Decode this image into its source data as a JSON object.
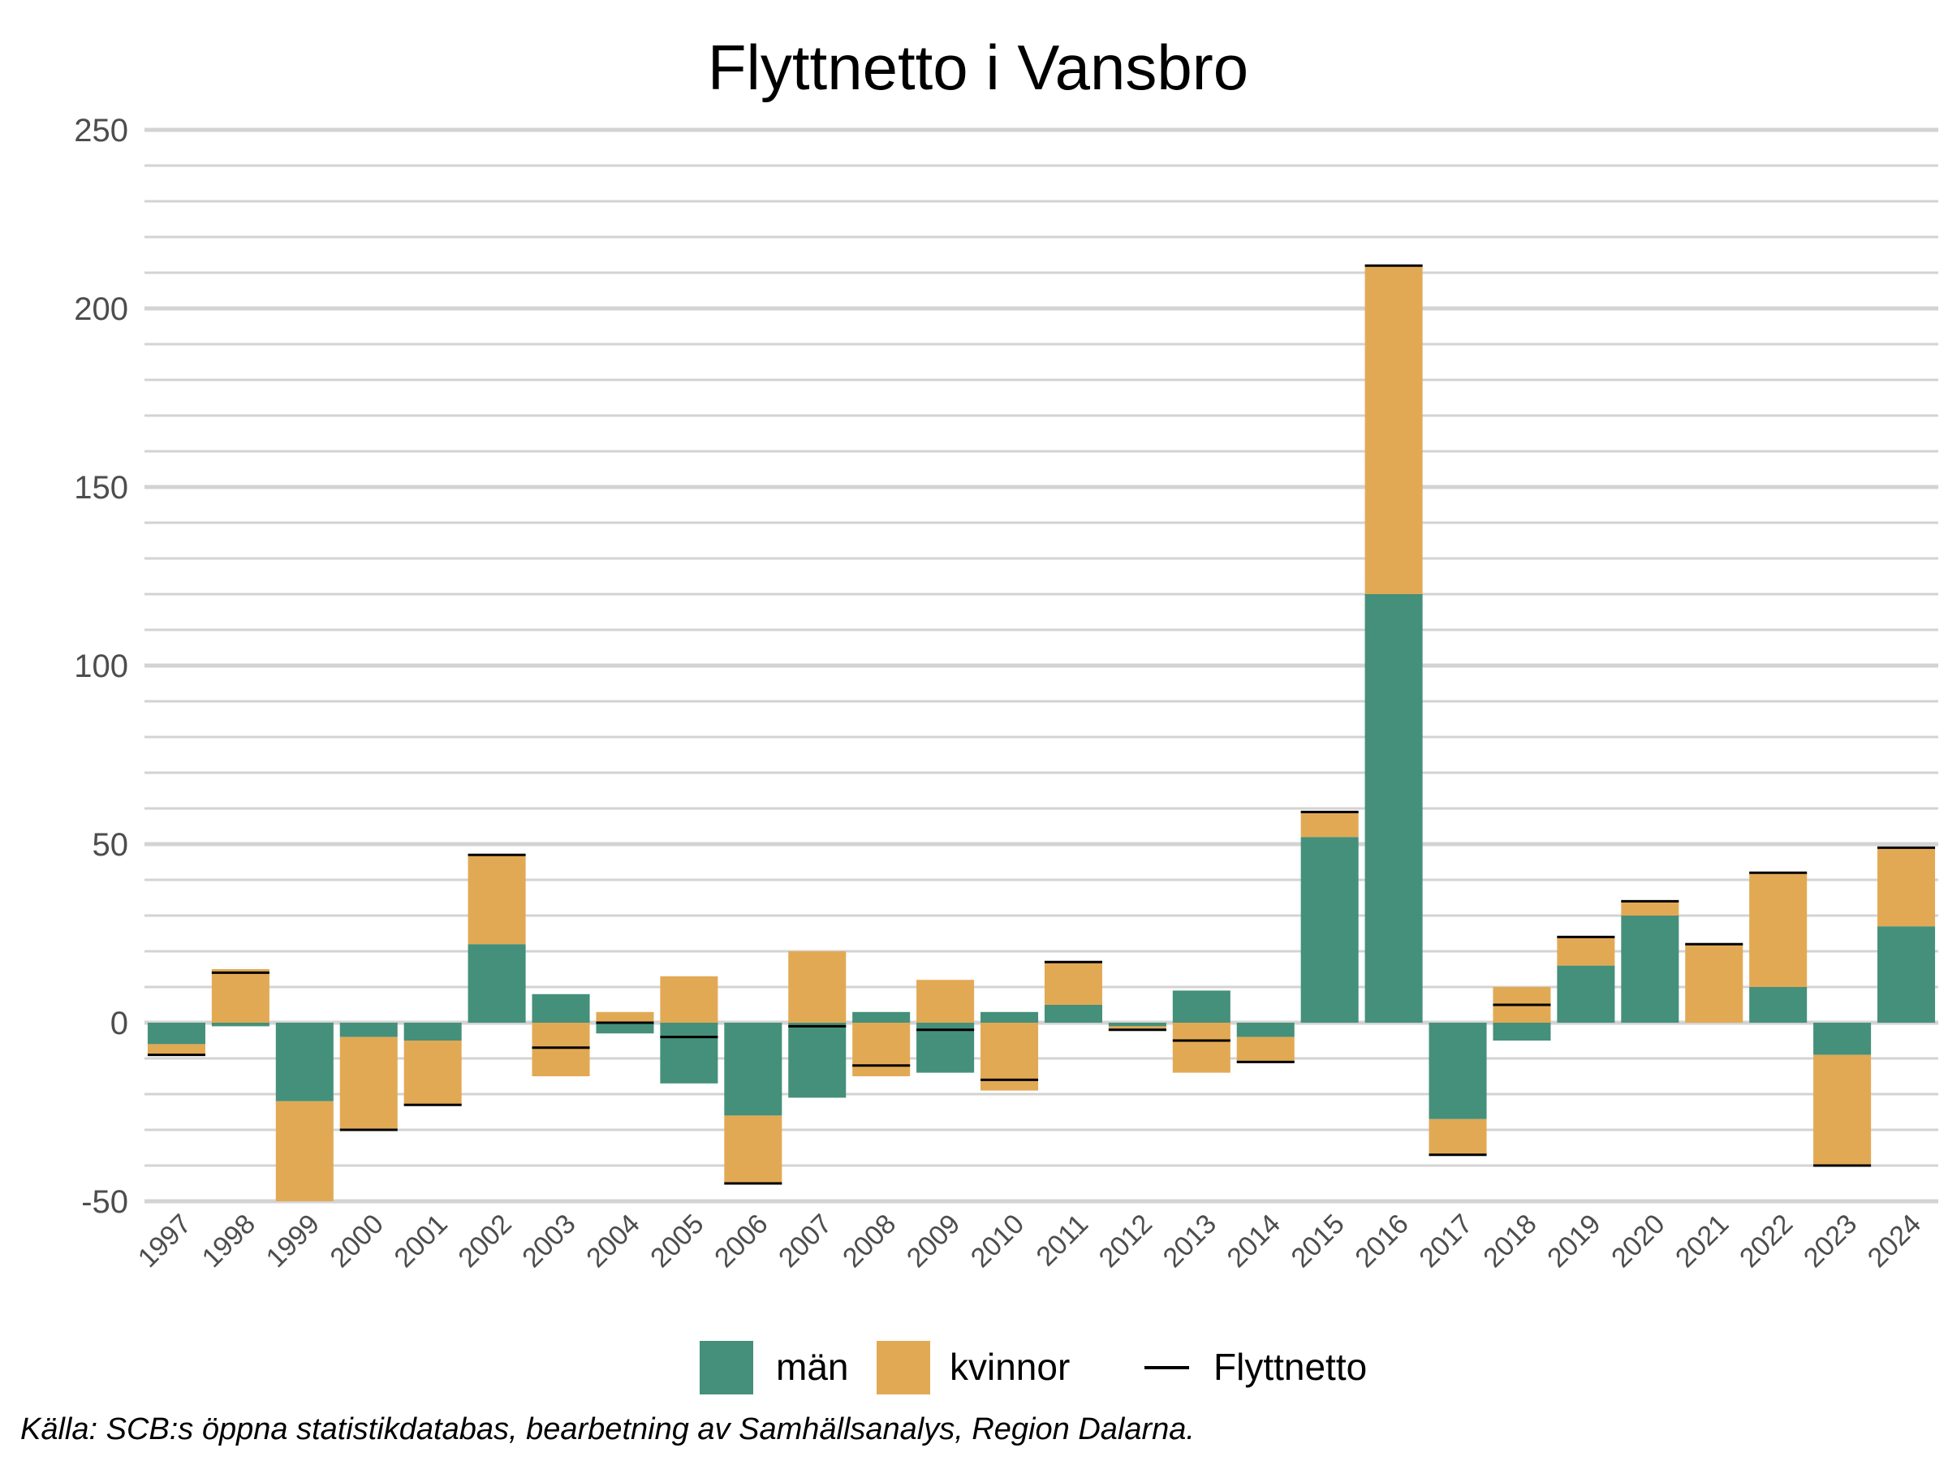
{
  "chart_data": {
    "type": "bar",
    "stacked": true,
    "title": "Flyttnetto i Vansbro",
    "xlabel": "",
    "ylabel": "",
    "ylim": [
      -50,
      250
    ],
    "yticks": [
      -50,
      0,
      50,
      100,
      150,
      200,
      250
    ],
    "categories": [
      "1997",
      "1998",
      "1999",
      "2000",
      "2001",
      "2002",
      "2003",
      "2004",
      "2005",
      "2006",
      "2007",
      "2008",
      "2009",
      "2010",
      "2011",
      "2012",
      "2013",
      "2014",
      "2015",
      "2016",
      "2017",
      "2018",
      "2019",
      "2020",
      "2021",
      "2022",
      "2023",
      "2024"
    ],
    "series": [
      {
        "name": "män",
        "color": "#45907A",
        "values": [
          -6,
          -1,
          -22,
          -4,
          -5,
          22,
          8,
          -3,
          -17,
          -26,
          -21,
          3,
          -14,
          3,
          5,
          -1,
          9,
          -4,
          52,
          120,
          -27,
          -5,
          16,
          30,
          0,
          10,
          -9,
          27
        ]
      },
      {
        "name": "kvinnor",
        "color": "#E2A955",
        "values": [
          -3,
          15,
          -35,
          -26,
          -18,
          25,
          -15,
          3,
          13,
          -19,
          20,
          -15,
          12,
          -19,
          12,
          -1,
          -14,
          -7,
          7,
          92,
          -10,
          10,
          8,
          4,
          22,
          32,
          -31,
          22
        ]
      }
    ],
    "line_series": {
      "name": "Flyttnetto",
      "color": "#000000",
      "values": [
        -9,
        14,
        -57,
        -30,
        -23,
        47,
        -7,
        0,
        -4,
        -45,
        -1,
        -12,
        -2,
        -16,
        17,
        -2,
        -5,
        -11,
        59,
        212,
        -37,
        5,
        24,
        34,
        22,
        42,
        -40,
        49
      ]
    },
    "legend": {
      "position": "bottom",
      "labels": [
        "män",
        "kvinnor",
        "Flyttnetto"
      ]
    },
    "grid": true,
    "caption": "Källa: SCB:s öppna statistikdatabas, bearbetning av Samhällsanalys, Region Dalarna."
  }
}
